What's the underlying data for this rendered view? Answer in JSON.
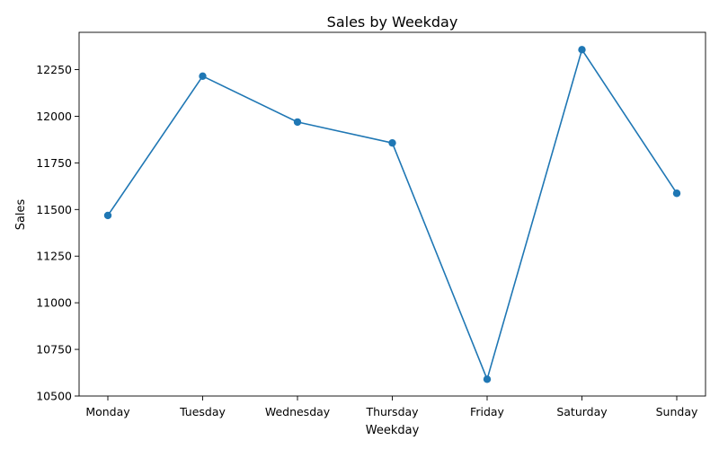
{
  "chart_data": {
    "type": "line",
    "title": "Sales by Weekday",
    "xlabel": "Weekday",
    "ylabel": "Sales",
    "categories": [
      "Monday",
      "Tuesday",
      "Wednesday",
      "Thursday",
      "Friday",
      "Saturday",
      "Sunday"
    ],
    "series": [
      {
        "values": [
          11468,
          12215,
          11969,
          11857,
          10590,
          12357,
          11587
        ],
        "color": "#1f77b4",
        "marker": "circle"
      }
    ],
    "ylim": [
      10500,
      12450
    ],
    "yticks": [
      10500,
      10750,
      11000,
      11250,
      11500,
      11750,
      12000,
      12250
    ],
    "grid": false,
    "legend": "none"
  }
}
